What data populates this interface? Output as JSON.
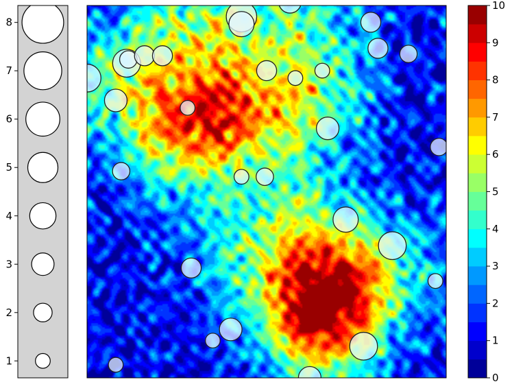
{
  "chart_data": [
    {
      "type": "scatter",
      "role": "size-legend",
      "x": 0,
      "y": [
        1,
        2,
        3,
        4,
        5,
        6,
        7,
        8
      ],
      "yticks": [
        1,
        2,
        3,
        4,
        5,
        6,
        7,
        8
      ],
      "ylim": [
        0.65,
        8.35
      ],
      "background": "#d3d3d3",
      "marker_color": "#ffffff"
    },
    {
      "type": "heatmap",
      "description_hidden": false,
      "xlim": [
        0,
        100
      ],
      "ylim": [
        0,
        100
      ],
      "colormap": "jet",
      "levels": [
        0,
        0.5,
        1,
        1.5,
        2,
        2.5,
        3,
        3.5,
        4,
        4.5,
        5,
        5.5,
        6,
        6.5,
        7,
        7.5,
        8,
        8.5,
        9,
        9.5,
        10
      ],
      "hotspots": [
        {
          "x": 33,
          "y": 74,
          "v": 4.0
        },
        {
          "x": 22,
          "y": 64,
          "v": 4.5
        },
        {
          "x": 35,
          "y": 68,
          "v": 4.5
        },
        {
          "x": 50,
          "y": 72,
          "v": 4.5
        },
        {
          "x": 66,
          "y": 75,
          "v": 4.0
        },
        {
          "x": 26,
          "y": 95,
          "v": 4.5
        },
        {
          "x": 45,
          "y": 96,
          "v": 4.0
        },
        {
          "x": 65,
          "y": 95,
          "v": 3.5
        },
        {
          "x": 8,
          "y": 80,
          "v": 5.0
        },
        {
          "x": 58,
          "y": 48,
          "v": 3.5
        },
        {
          "x": 62,
          "y": 30,
          "v": 5.0
        },
        {
          "x": 74,
          "y": 25,
          "v": 5.5
        },
        {
          "x": 62,
          "y": 15,
          "v": 5.5
        },
        {
          "x": 68,
          "y": 10,
          "v": 4.0
        },
        {
          "x": 45,
          "y": 28,
          "v": 3.0
        },
        {
          "x": 36,
          "y": 42,
          "v": 2.5
        },
        {
          "x": 88,
          "y": 32,
          "v": 3.0
        }
      ],
      "peak": {
        "x": 61.5,
        "y": 14.5,
        "v": 9.2
      },
      "colorbar": {
        "ticks": [
          0,
          1,
          2,
          3,
          4,
          5,
          6,
          7,
          8,
          9,
          10
        ],
        "vmin": 0,
        "vmax": 10
      },
      "points": [
        {
          "x": 0,
          "y": 80.5,
          "s": 7
        },
        {
          "x": 11,
          "y": 84.5,
          "s": 7
        },
        {
          "x": 11.5,
          "y": 85.5,
          "s": 3
        },
        {
          "x": 16,
          "y": 86.5,
          "s": 4
        },
        {
          "x": 21,
          "y": 86.5,
          "s": 4
        },
        {
          "x": 8,
          "y": 74.5,
          "s": 5
        },
        {
          "x": 28,
          "y": 72.5,
          "s": 2
        },
        {
          "x": 9.5,
          "y": 55.5,
          "s": 3
        },
        {
          "x": 43,
          "y": 97,
          "s": 8
        },
        {
          "x": 43,
          "y": 95,
          "s": 6
        },
        {
          "x": 56.5,
          "y": 101,
          "s": 5
        },
        {
          "x": 50,
          "y": 82.5,
          "s": 4
        },
        {
          "x": 58,
          "y": 80.5,
          "s": 2
        },
        {
          "x": 65.5,
          "y": 82.5,
          "s": 2
        },
        {
          "x": 79,
          "y": 95.5,
          "s": 4
        },
        {
          "x": 81,
          "y": 88.5,
          "s": 4
        },
        {
          "x": 89.5,
          "y": 87,
          "s": 3
        },
        {
          "x": 67,
          "y": 67,
          "s": 5
        },
        {
          "x": 98,
          "y": 62,
          "s": 3
        },
        {
          "x": 43,
          "y": 54,
          "s": 2
        },
        {
          "x": 49.5,
          "y": 54,
          "s": 3
        },
        {
          "x": 72,
          "y": 42.5,
          "s": 6
        },
        {
          "x": 85,
          "y": 35.5,
          "s": 7
        },
        {
          "x": 29,
          "y": 29.5,
          "s": 4
        },
        {
          "x": 97,
          "y": 26,
          "s": 2
        },
        {
          "x": 40,
          "y": 13,
          "s": 5
        },
        {
          "x": 35,
          "y": 10,
          "s": 2
        },
        {
          "x": 77,
          "y": 8.5,
          "s": 7
        },
        {
          "x": 8,
          "y": 3.5,
          "s": 2
        },
        {
          "x": 62,
          "y": 0,
          "s": 5
        }
      ],
      "marker_color": "#e6f5ff",
      "marker_edge": "#222222"
    }
  ]
}
